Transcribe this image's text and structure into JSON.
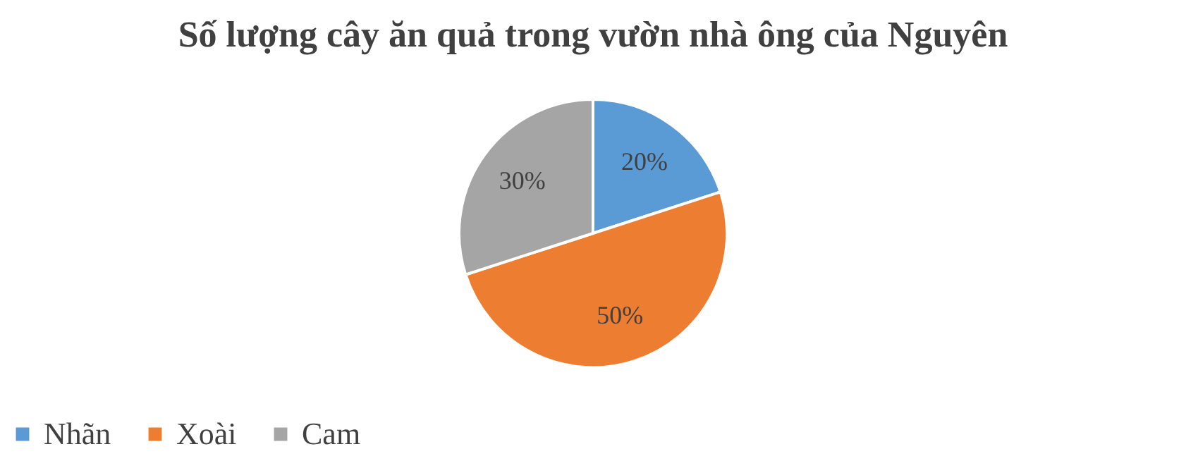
{
  "chart_data": {
    "type": "pie",
    "title": "Số lượng cây ăn quả trong vườn nhà ông của Nguyên",
    "categories": [
      "Nhãn",
      "Xoài",
      "Cam"
    ],
    "values": [
      20,
      50,
      30
    ],
    "colors": [
      "#5b9bd5",
      "#ed7d31",
      "#a5a5a5"
    ],
    "value_labels": [
      "20%",
      "50%",
      "30%"
    ],
    "legend": "bottom"
  }
}
